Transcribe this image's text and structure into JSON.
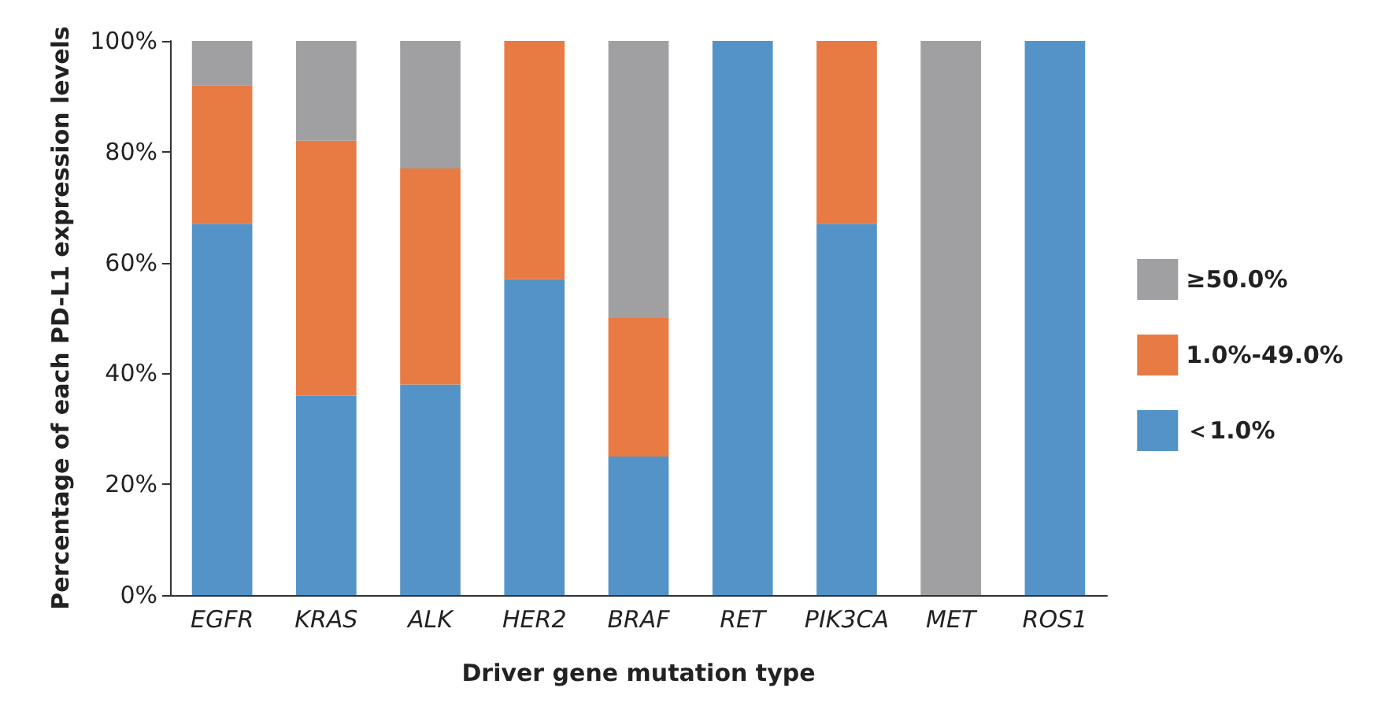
{
  "chart_data": {
    "type": "bar",
    "stacked": true,
    "xlabel": "Driver gene mutation type",
    "ylabel": "Percentage of each PD-L1 expression levels",
    "categories": [
      "EGFR",
      "KRAS",
      "ALK",
      "HER2",
      "BRAF",
      "RET",
      "PIK3CA",
      "MET",
      "ROS1"
    ],
    "series": [
      {
        "name": "＜1.0%",
        "color": "#5393c8",
        "values": [
          67,
          36,
          38,
          57,
          25,
          100,
          67,
          0,
          100
        ]
      },
      {
        "name": "1.0%-49.0%",
        "color": "#e77b43",
        "values": [
          25,
          46,
          39,
          43,
          25,
          0,
          33,
          0,
          0
        ]
      },
      {
        "name": "≥50.0%",
        "color": "#a0a0a3",
        "values": [
          8,
          18,
          23,
          0,
          50,
          0,
          0,
          100,
          0
        ]
      }
    ],
    "ylim": [
      0,
      100
    ],
    "yticks": [
      {
        "value": 0,
        "label": "0%"
      },
      {
        "value": 20,
        "label": "20%"
      },
      {
        "value": 40,
        "label": "40%"
      },
      {
        "value": 60,
        "label": "60%"
      },
      {
        "value": 80,
        "label": "80%"
      },
      {
        "value": 100,
        "label": "100%"
      }
    ],
    "grid": false,
    "legend": "right"
  }
}
